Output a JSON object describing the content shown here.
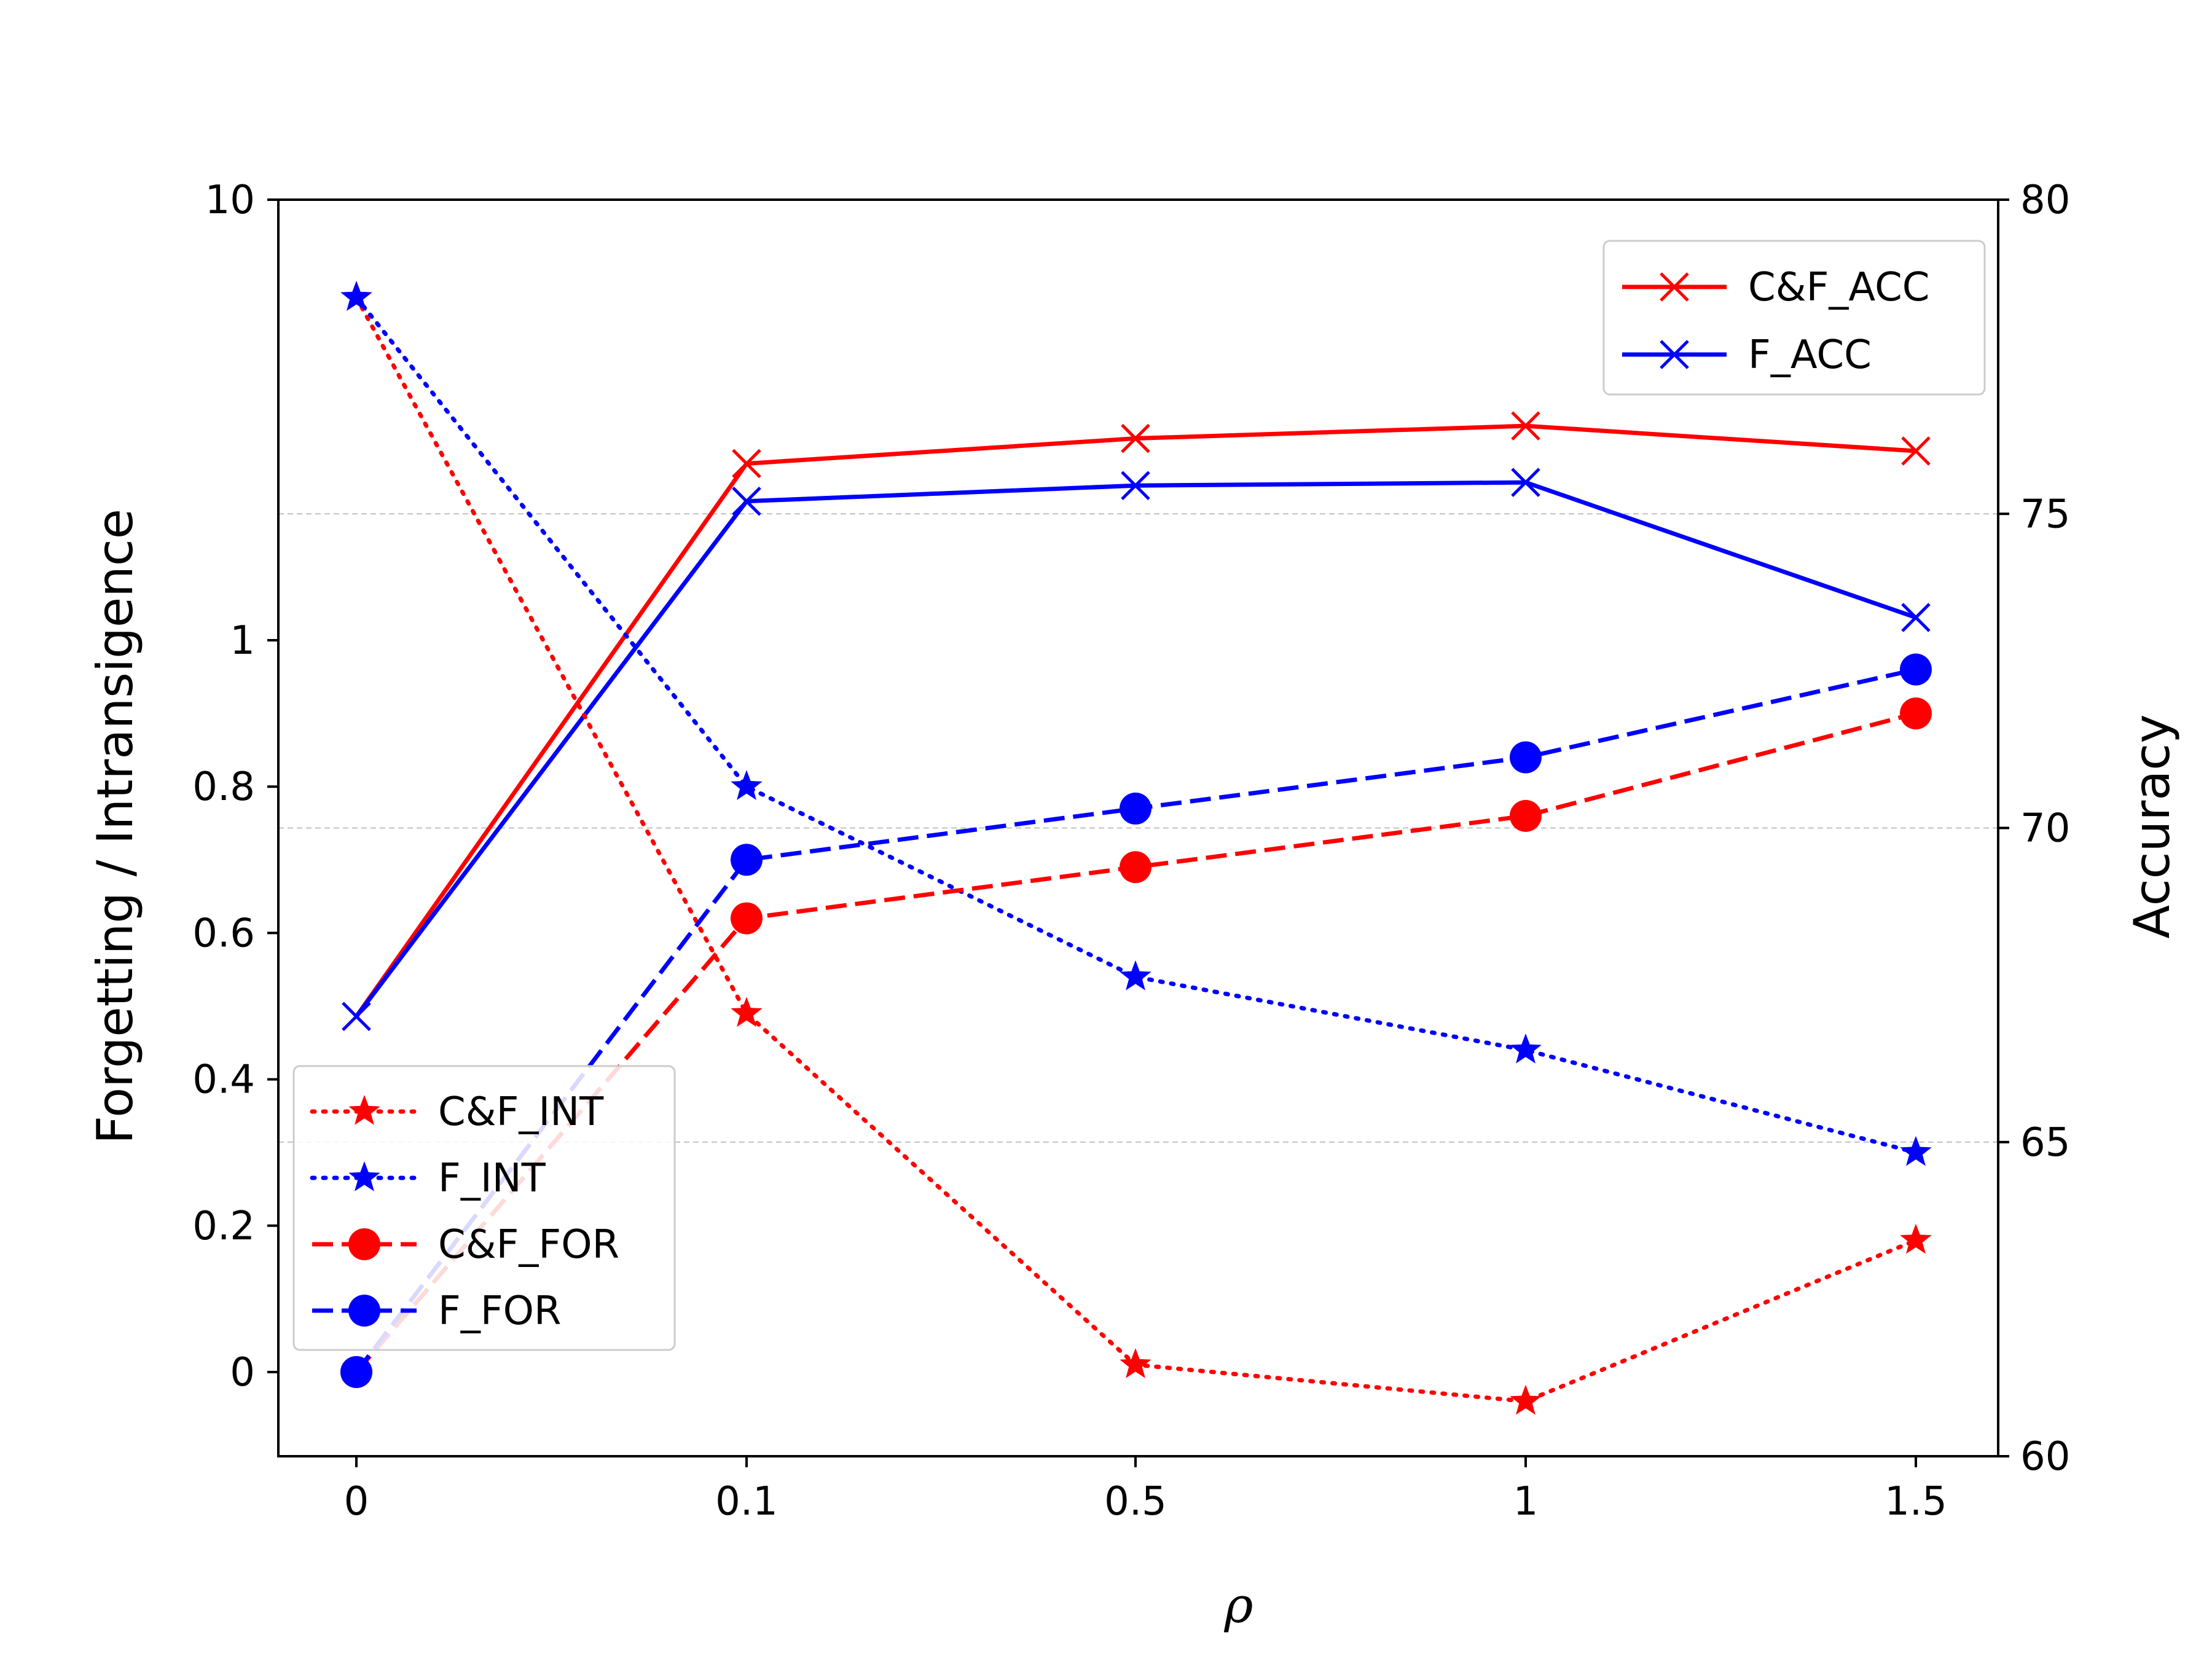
{
  "chart_data": {
    "type": "line",
    "x": [
      "0",
      "0.1",
      "0.5",
      "1",
      "1.5"
    ],
    "xlabel": "ρ",
    "ylabel_left": "Forgetting / Intransigence",
    "ylabel_right": "Accuracy",
    "left_axis": {
      "ticks": [
        "0",
        "0.2",
        "0.4",
        "0.6",
        "0.8",
        "1",
        "10"
      ],
      "note": "piecewise scale: linear from 0 to 1, log-like segment from 1 to 10",
      "ylim": [
        -0.11,
        10
      ]
    },
    "right_axis": {
      "ticks": [
        "60",
        "65",
        "70",
        "75",
        "80"
      ],
      "ylim": [
        60,
        80
      ],
      "grid": true
    },
    "series_left": [
      {
        "name": "C&F_INT",
        "color": "#ff0000",
        "style": "dotted",
        "marker": "star",
        "values": [
          6.0,
          0.49,
          0.01,
          -0.04,
          0.18
        ]
      },
      {
        "name": "F_INT",
        "color": "#0000ff",
        "style": "dotted",
        "marker": "star",
        "values": [
          6.0,
          0.8,
          0.54,
          0.44,
          0.3
        ]
      },
      {
        "name": "C&F_FOR",
        "color": "#ff0000",
        "style": "dashed",
        "marker": "circle",
        "values": [
          0.0,
          0.62,
          0.69,
          0.76,
          0.9
        ]
      },
      {
        "name": "F_FOR",
        "color": "#0000ff",
        "style": "dashed",
        "marker": "circle",
        "values": [
          0.0,
          0.7,
          0.77,
          0.84,
          0.96
        ]
      }
    ],
    "series_right": [
      {
        "name": "C&F_ACC",
        "color": "#ff0000",
        "style": "solid",
        "marker": "x",
        "values": [
          67.0,
          75.8,
          76.2,
          76.4,
          76.0
        ]
      },
      {
        "name": "F_ACC",
        "color": "#0000ff",
        "style": "solid",
        "marker": "x",
        "values": [
          67.0,
          75.2,
          75.45,
          75.5,
          73.35
        ]
      }
    ],
    "legend_right_position": "top-right",
    "legend_left_position": "lower-left"
  }
}
